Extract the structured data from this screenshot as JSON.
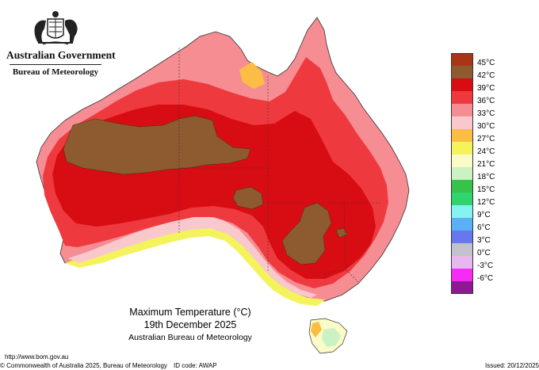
{
  "header": {
    "government": "Australian Government",
    "bureau": "Bureau of Meteorology"
  },
  "caption": {
    "title": "Maximum Temperature (°C)",
    "date": "19th December 2025",
    "source": "Australian Bureau of Meteorology"
  },
  "legend": [
    {
      "label": "45°C",
      "color": "#a83616"
    },
    {
      "label": "42°C",
      "color": "#8e5a30"
    },
    {
      "label": "39°C",
      "color": "#d80d13"
    },
    {
      "label": "36°C",
      "color": "#ee3a3e"
    },
    {
      "label": "33°C",
      "color": "#f58d93"
    },
    {
      "label": "30°C",
      "color": "#f8c8cc"
    },
    {
      "label": "27°C",
      "color": "#fbbd43"
    },
    {
      "label": "24°C",
      "color": "#f4f35c"
    },
    {
      "label": "21°C",
      "color": "#fbfbc8"
    },
    {
      "label": "18°C",
      "color": "#cbf2c3"
    },
    {
      "label": "15°C",
      "color": "#35c34a"
    },
    {
      "label": "12°C",
      "color": "#30d36c"
    },
    {
      "label": "9°C",
      "color": "#86f3f3"
    },
    {
      "label": "6°C",
      "color": "#5ab0f5"
    },
    {
      "label": "3°C",
      "color": "#6777f0"
    },
    {
      "label": "0°C",
      "color": "#c2c2cc"
    },
    {
      "label": "-3°C",
      "color": "#e9b7ef"
    },
    {
      "label": "-6°C",
      "color": "#f62bf5"
    },
    {
      "label": "",
      "color": "#8d1a92"
    }
  ],
  "footer": {
    "url": "http://www.bom.gov.au",
    "copyright": "© Commonwealth of Australia 2025, Bureau of Meteorology",
    "id_code": "ID code: AWAP",
    "issued": "Issued: 20/12/2025"
  },
  "icons": {
    "crest": "commonwealth-coat-of-arms-icon"
  }
}
